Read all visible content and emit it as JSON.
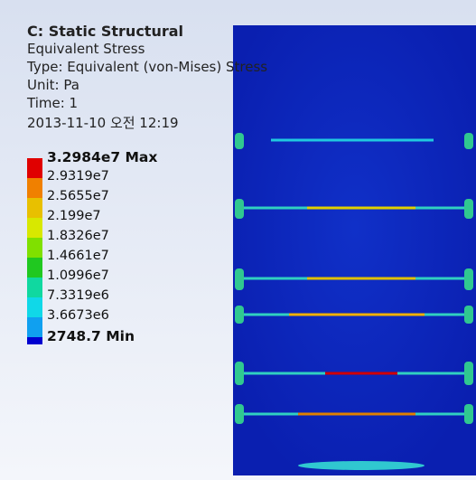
{
  "header": {
    "title": "C: Static Structural",
    "lines": [
      "Equivalent Stress",
      "Type: Equivalent (von-Mises) Stress",
      "Unit: Pa",
      "Time: 1",
      "2013-11-10 오전 12:19"
    ]
  },
  "legend": {
    "max_label": "3.2984e7 Max",
    "labels": [
      "2.9319e7",
      "2.5655e7",
      "2.199e7",
      "1.8326e7",
      "1.4661e7",
      "1.0996e7",
      "7.3319e6",
      "3.6673e6"
    ],
    "min_label": "2748.7 Min",
    "colors": [
      "#e00000",
      "#f08000",
      "#e8c000",
      "#d8e800",
      "#80e000",
      "#20c820",
      "#10d8a0",
      "#10d8e8",
      "#10a0f0"
    ],
    "min_color": "#0000d0"
  }
}
